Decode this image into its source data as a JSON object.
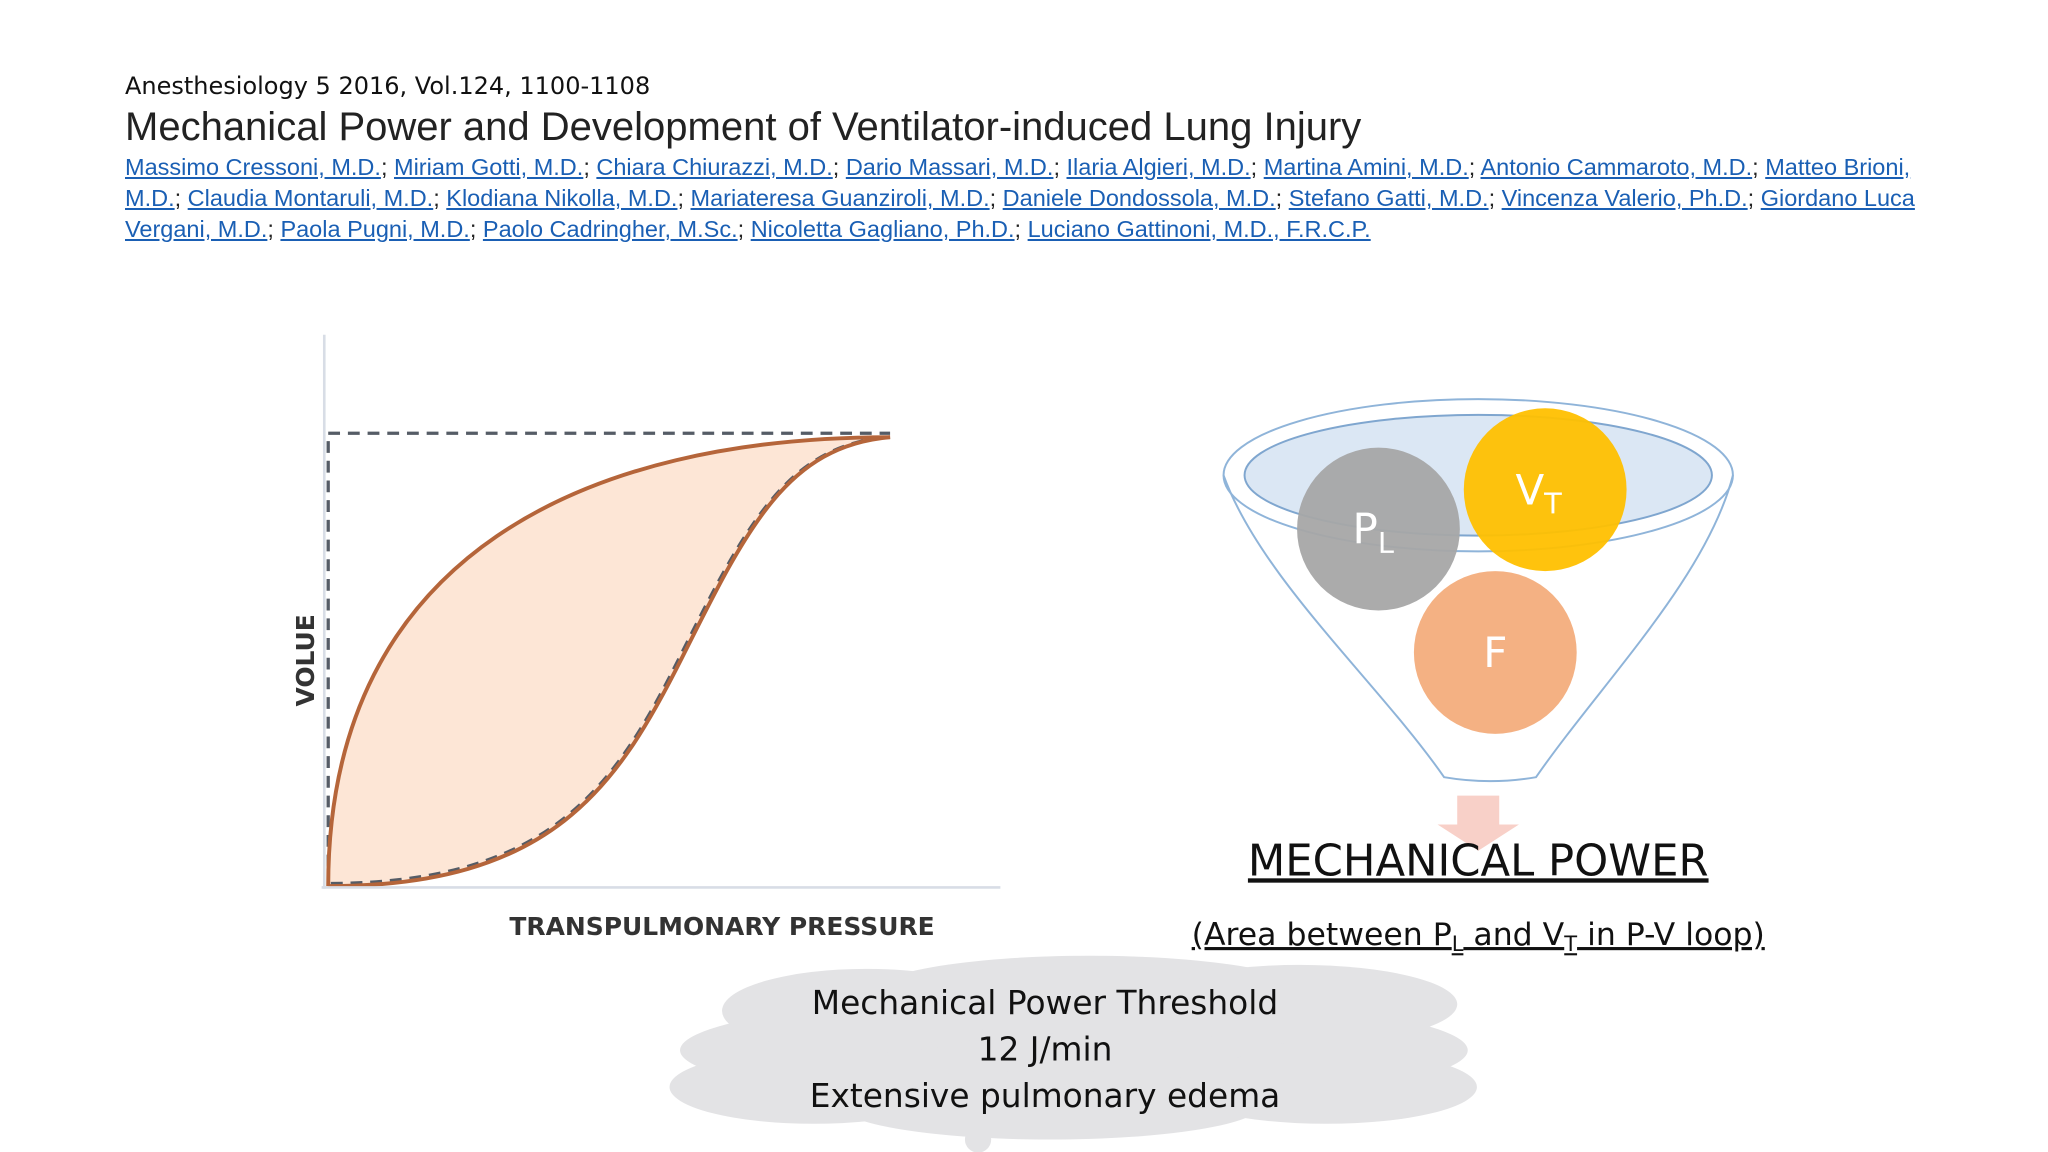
{
  "citation": "Anesthesiology 5 2016, Vol.124, 1100-1108",
  "title": "Mechanical Power and Development of Ventilator-induced Lung Injury",
  "author_separator": "; ",
  "authors": [
    "Massimo Cressoni, M.D.",
    "Miriam Gotti, M.D.",
    "Chiara Chiurazzi, M.D.",
    "Dario Massari, M.D.",
    "Ilaria Algieri, M.D.",
    "Martina Amini, M.D.",
    "Antonio Cammaroto, M.D.",
    "Matteo Brioni, M.D.",
    "Claudia Montaruli, M.D.",
    "Klodiana Nikolla, M.D.",
    "Mariateresa Guanziroli, M.D.",
    "Daniele Dondossola, M.D.",
    "Stefano Gatti, M.D.",
    "Vincenza Valerio, Ph.D.",
    "Giordano Luca Vergani, M.D.",
    "Paola Pugni, M.D.",
    "Paolo Cadringher, M.Sc.",
    "Nicoletta Gagliano, Ph.D.",
    "Luciano Gattinoni, M.D., F.R.C.P."
  ],
  "figure": {
    "y_axis_label": "VOLUE",
    "x_axis_label": "TRANSPULMONARY PRESSURE"
  },
  "funnel": {
    "circles": [
      {
        "main": "P",
        "sub": "L"
      },
      {
        "main": "V",
        "sub": "T"
      },
      {
        "main": "F"
      }
    ]
  },
  "mechanical_power": {
    "heading": "MECHANICAL POWER",
    "subtitle": {
      "before": "(Area between P",
      "sub1": "L",
      "middle": " and V",
      "sub2": "T",
      "after": " in P-V loop)"
    }
  },
  "cloud": {
    "lines": [
      "Mechanical Power Threshold",
      "12 J/min",
      "Extensive pulmonary edema"
    ]
  }
}
